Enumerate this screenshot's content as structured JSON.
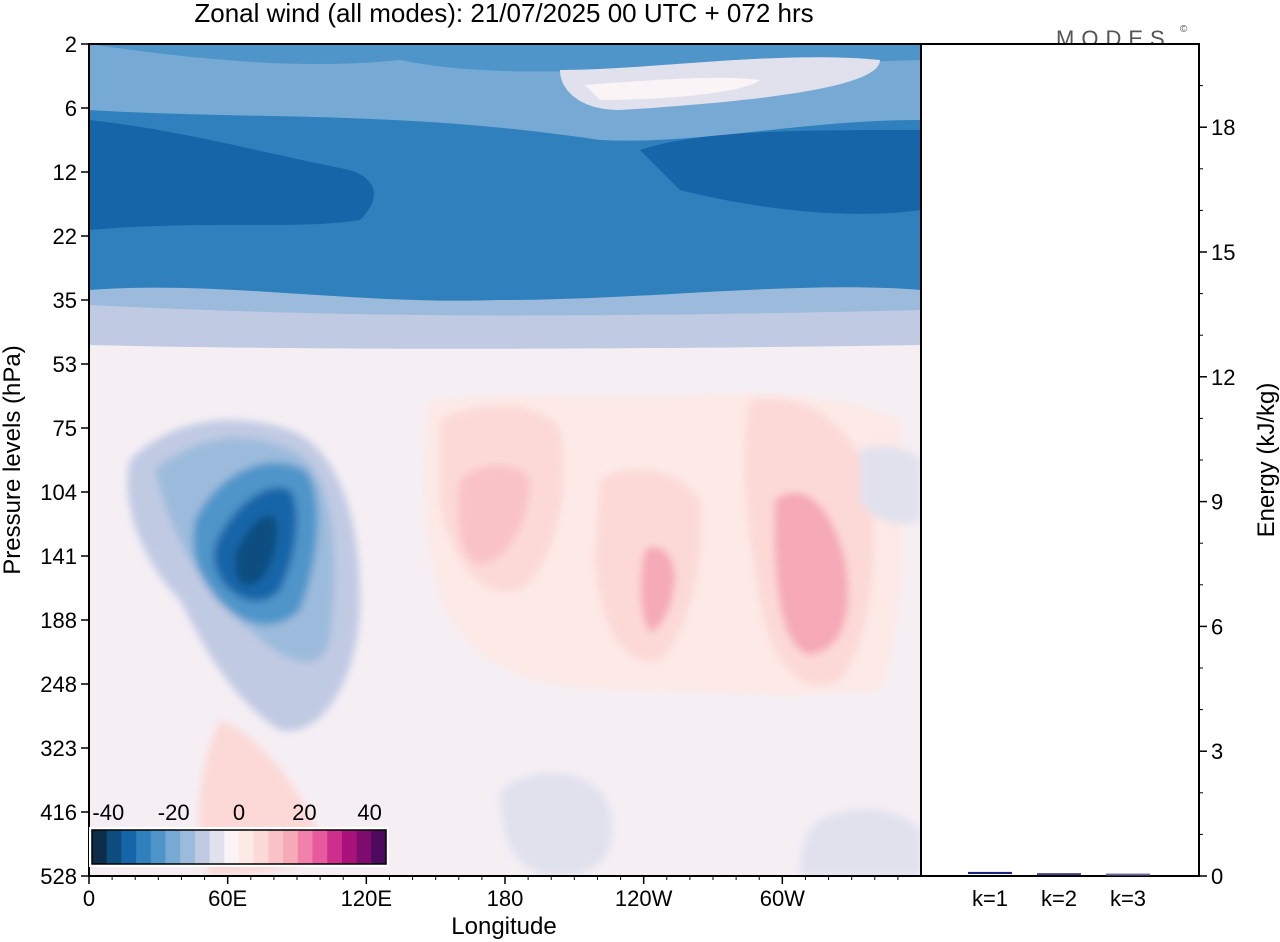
{
  "chart_data": {
    "type": "heatmap",
    "title": "Zonal wind (all modes):  21/07/2025  00 UTC  + 072 hrs",
    "brand": "MODES",
    "brand_mark": "©",
    "xlabel": "Longitude",
    "ylabel": "Pressure levels (hPa)",
    "x_ticks": [
      "0",
      "60E",
      "120E",
      "180",
      "120W",
      "60W"
    ],
    "x_tick_values": [
      0,
      60,
      120,
      180,
      240,
      300
    ],
    "x_range": [
      0,
      360
    ],
    "y_ticks": [
      "2",
      "6",
      "12",
      "22",
      "35",
      "53",
      "75",
      "104",
      "141",
      "188",
      "248",
      "323",
      "416",
      "528"
    ],
    "colorbar": {
      "labels": [
        "-40",
        "-20",
        "0",
        "20",
        "40"
      ],
      "min": -45,
      "max": 45,
      "step": 5,
      "colors": [
        "#0d2d4b",
        "#0e4e7f",
        "#1565a8",
        "#2f80bd",
        "#4f95c9",
        "#76aad4",
        "#9cbbdc",
        "#c1cae3",
        "#e1e1ee",
        "#faf4f6",
        "#fde9e6",
        "#fcd9d7",
        "#f9c2c7",
        "#f6a9b7",
        "#f280ab",
        "#e75a9d",
        "#cf2f8c",
        "#a8127a",
        "#7e0b6e",
        "#4d0a5e"
      ]
    },
    "energy_panel": {
      "ylabel": "Energy (kJ/kg)",
      "y_ticks": [
        "0",
        "3",
        "6",
        "9",
        "12",
        "15",
        "18"
      ],
      "y_tick_values": [
        0,
        3,
        6,
        9,
        12,
        15,
        18
      ],
      "ylim": [
        0,
        20
      ],
      "categories": [
        "k=1",
        "k=2",
        "k=3"
      ],
      "values": [
        0.05,
        0.02,
        0.01
      ],
      "bar_colors": [
        "#1a237e",
        "#3f3f7f",
        "#6a6a9a"
      ]
    },
    "field_features": [
      {
        "name": "upper-westward-jet",
        "value": -25
      },
      {
        "name": "westward-core-70E-140hPa",
        "value": -40
      },
      {
        "name": "eastward-maximum-near-180",
        "value": 10
      },
      {
        "name": "eastward-maximum-near-90W",
        "value": 10
      },
      {
        "name": "eastward-maximum-near-60W",
        "value": 15
      }
    ]
  }
}
